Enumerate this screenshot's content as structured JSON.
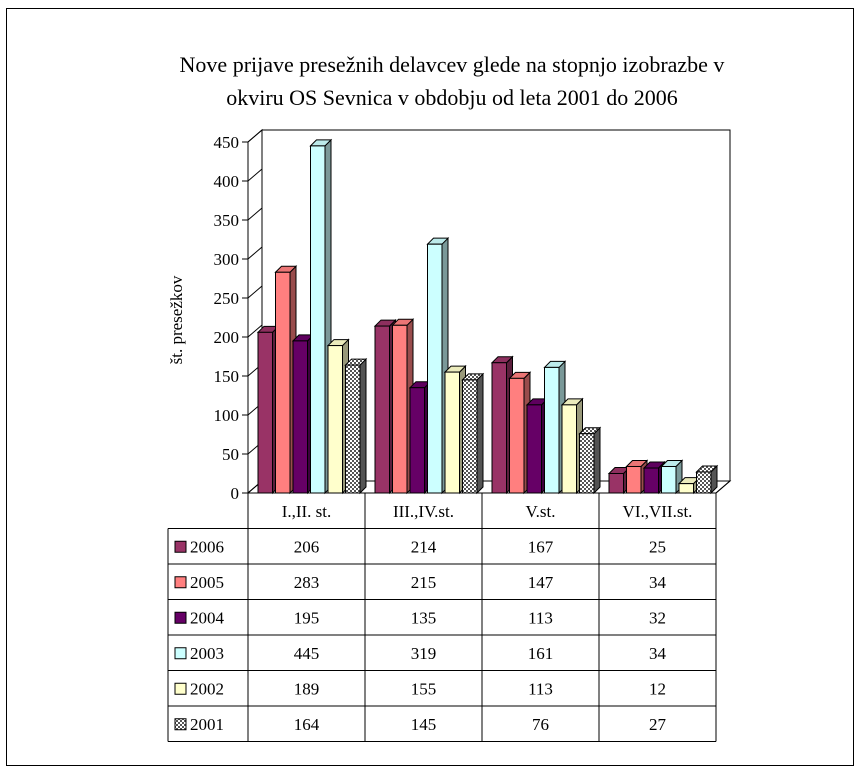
{
  "chart_data": {
    "type": "bar",
    "title_line1": "Nove prijave presežnih  delavcev glede na stopnjo izobrazbe v",
    "title_line2": "okviru OS Sevnica v obdobju od leta 2001 do 2006",
    "ylabel": "št. presežkov",
    "xlabel": "",
    "ylim": [
      0,
      450
    ],
    "yticks": [
      0,
      50,
      100,
      150,
      200,
      250,
      300,
      350,
      400,
      450
    ],
    "categories": [
      "I.,II. st.",
      "III.,IV.st.",
      "V.st.",
      "VI.,VII.st."
    ],
    "series": [
      {
        "name": "2006",
        "values": [
          206,
          214,
          167,
          25
        ],
        "color": "#993366"
      },
      {
        "name": "2005",
        "values": [
          283,
          215,
          147,
          34
        ],
        "color": "#ff7f7f"
      },
      {
        "name": "2004",
        "values": [
          195,
          135,
          113,
          32
        ],
        "color": "#660066"
      },
      {
        "name": "2003",
        "values": [
          445,
          319,
          161,
          34
        ],
        "color": "#ccffff"
      },
      {
        "name": "2002",
        "values": [
          189,
          155,
          113,
          12
        ],
        "color": "#ffffcc"
      },
      {
        "name": "2001",
        "values": [
          164,
          145,
          76,
          27
        ],
        "color": "#999999",
        "pattern": "checker"
      }
    ],
    "grid": false,
    "legend": "data-table",
    "view": "3d-clustered-bar"
  }
}
